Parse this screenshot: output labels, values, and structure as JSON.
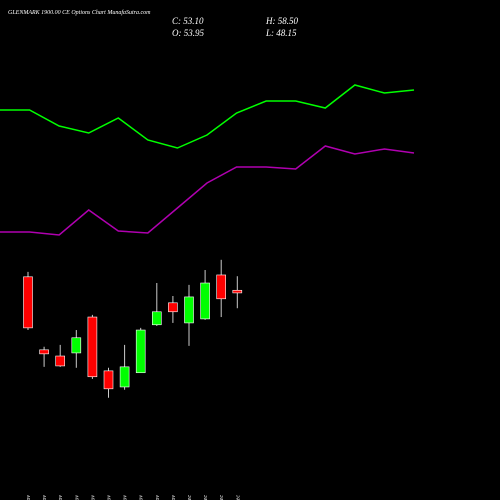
{
  "chart_data": [
    {
      "type": "candlestick",
      "title": "GLENMARK 1900.00 CE Options Chart MunafaSutra.com",
      "summary": [
        "C: 53.10",
        "O: 53.95",
        "H: 58.50",
        "L: 48.15"
      ],
      "categories": [
        "17 Nov",
        "18 Nov",
        "19 Nov",
        "20 Nov",
        "21 Nov",
        "24 Nov",
        "25 Nov",
        "26 Nov",
        "27 Nov",
        "28 Nov",
        "01 Dec",
        "02 Dec",
        "03 Dec",
        "04 Dec"
      ],
      "open": [
        58.3,
        34.7,
        32.7,
        33.7,
        45.3,
        27.9,
        22.7,
        27.3,
        42.8,
        49.9,
        43.4,
        44.7,
        58.9,
        53.95
      ],
      "high": [
        59.9,
        35.7,
        36.3,
        41.1,
        46.0,
        28.9,
        36.3,
        41.8,
        56.3,
        52.1,
        55.7,
        60.5,
        63.8,
        58.5
      ],
      "low": [
        41.1,
        29.2,
        29.2,
        28.9,
        25.3,
        19.2,
        21.8,
        27.3,
        42.4,
        43.4,
        36.0,
        44.4,
        45.3,
        48.15
      ],
      "close": [
        41.8,
        33.4,
        29.5,
        38.6,
        26.0,
        22.1,
        29.2,
        41.1,
        47.0,
        47.0,
        51.8,
        56.3,
        51.2,
        53.1
      ],
      "up_color": "#00ff00",
      "down_color": "#ff0000",
      "ylim": [
        18,
        66
      ]
    },
    {
      "type": "line",
      "series": [
        {
          "color": "#00ff00",
          "values": [
            75,
            75,
            67,
            63.5,
            71,
            60,
            56,
            62.5,
            73.5,
            79.5,
            79.5,
            76,
            87.5,
            83.5,
            85
          ]
        },
        {
          "color": "#b000b0",
          "values": [
            14,
            14,
            12.5,
            25,
            14.5,
            13.5,
            26,
            38.5,
            46.5,
            46.5,
            45.5,
            57,
            53,
            55.5,
            53.5
          ]
        }
      ],
      "ylim": [
        0,
        100
      ]
    }
  ]
}
